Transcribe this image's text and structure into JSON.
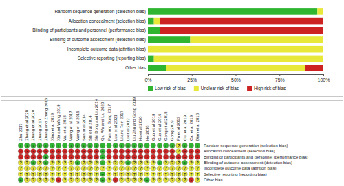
{
  "chart_data": {
    "type": "bar",
    "orientation": "horizontal",
    "stacked": true,
    "legend": "bottom",
    "categories": [
      "Random sequence generation (selection bias)",
      "Allocation concealment (selection bias)",
      "Blinding of participants and personnel (performance bias)",
      "Blinding of outcome assessment (detection bias)",
      "Incomplete outcome data (attrition bias)",
      "Selective reporting (reporting bias)",
      "Other bias"
    ],
    "series": [
      {
        "name": "Low risk of bias",
        "color": "#2fb52f",
        "values": [
          96.6,
          3.4,
          6.9,
          24.1,
          0,
          3.4,
          10.3
        ]
      },
      {
        "name": "Unclear risk of bias",
        "color": "#e8e83a",
        "values": [
          3.4,
          3.4,
          0,
          75.9,
          100,
          96.6,
          79.3
        ]
      },
      {
        "name": "High risk of bias",
        "color": "#cc2222",
        "values": [
          0,
          93.1,
          93.1,
          0,
          0,
          0,
          10.3
        ]
      }
    ],
    "xlim": [
      0,
      100
    ],
    "xticks": [
      {
        "value": 0,
        "label": "0%"
      },
      {
        "value": 25,
        "label": "25%"
      },
      {
        "value": 50,
        "label": "50%"
      },
      {
        "value": 75,
        "label": "75%"
      },
      {
        "value": 100,
        "label": "100%"
      }
    ]
  },
  "table": {
    "columns": [
      "Zhu 2017",
      "Zhong et al 2020",
      "Zhang et al 2020",
      "Zhang 2017",
      "Zhang and Zhang 2016",
      "Xiao et al 2019",
      "Xia and Wang 2019",
      "Wu et al 2018",
      "Wang et al 2017",
      "Wang et al 2015",
      "Sun et al 2014",
      "Shi et al 2014",
      "Shi Dong and Liu 2014",
      "Qiu Wu and Liu 2020",
      "Pan and Song 2017",
      "Luo et al 2021",
      "Li and Ren 2017",
      "Li et al 2013",
      "Liu Zhu and Gong 2019",
      "Hu et al 2020",
      "He 2018",
      "Guo et al 2019",
      "Guo et al 2016",
      "Gong et al 2018",
      "Gong 2019",
      "Fu et al 2013",
      "Cui et al 2019",
      "Cai et al 2019",
      "Bian et al 2018"
    ],
    "rows": [
      {
        "label": "Random sequence generation (selection bias)",
        "cells": [
          "+",
          "+",
          "+",
          "+",
          "+",
          "+",
          "+",
          "+",
          "+",
          "+",
          "+",
          "+",
          "+",
          "+",
          "+",
          "+",
          "+",
          "+",
          "+",
          "+",
          "+",
          "+",
          "+",
          "+",
          "+",
          "?",
          "+",
          "+",
          "+"
        ]
      },
      {
        "label": "Allocation concealment (selection bias)",
        "cells": [
          "-",
          "-",
          "-",
          "-",
          "-",
          "-",
          "-",
          "-",
          "-",
          "-",
          "-",
          "-",
          "-",
          "+",
          "-",
          "-",
          "-",
          "-",
          "-",
          "-",
          "-",
          "-",
          "-",
          "-",
          "-",
          "?",
          "-",
          "-",
          "-"
        ]
      },
      {
        "label": "Blinding of participants and personnel (performance bias)",
        "cells": [
          "-",
          "-",
          "-",
          "-",
          "+",
          "-",
          "-",
          "-",
          "-",
          "-",
          "-",
          "-",
          "-",
          "+",
          "-",
          "-",
          "-",
          "-",
          "-",
          "-",
          "-",
          "-",
          "-",
          "-",
          "-",
          "-",
          "-",
          "-",
          "-"
        ]
      },
      {
        "label": "Blinding of outcome assessment (detection bias)",
        "cells": [
          "?",
          "?",
          "+",
          "?",
          "+",
          "?",
          "?",
          "?",
          "?",
          "+",
          "?",
          "?",
          "?",
          "+",
          "?",
          "?",
          "?",
          "+",
          "?",
          "?",
          "?",
          "?",
          "+",
          "?",
          "?",
          "?",
          "+",
          "?",
          "?"
        ]
      },
      {
        "label": "Incomplete outcome data (attrition bias)",
        "cells": [
          "?",
          "?",
          "?",
          "?",
          "?",
          "?",
          "?",
          "?",
          "?",
          "?",
          "?",
          "?",
          "?",
          "?",
          "?",
          "?",
          "?",
          "?",
          "?",
          "?",
          "?",
          "?",
          "?",
          "?",
          "?",
          "?",
          "?",
          "?",
          "?"
        ]
      },
      {
        "label": "Selective reporting (reporting bias)",
        "cells": [
          "?",
          "?",
          "?",
          "?",
          "?",
          "?",
          "?",
          "?",
          "?",
          "?",
          "?",
          "?",
          "?",
          "+",
          "?",
          "?",
          "?",
          "?",
          "?",
          "?",
          "?",
          "?",
          "?",
          "?",
          "?",
          "?",
          "?",
          "?",
          "?"
        ]
      },
      {
        "label": "Other bias",
        "cells": [
          "+",
          "?",
          "?",
          "?",
          "?",
          "?",
          "-",
          "?",
          "?",
          "?",
          "?",
          "?",
          "?",
          "+",
          "?",
          "-",
          "?",
          "?",
          "?",
          "?",
          "+",
          "?",
          "?",
          "?",
          "?",
          "?",
          "?",
          "-",
          "?"
        ]
      }
    ]
  }
}
